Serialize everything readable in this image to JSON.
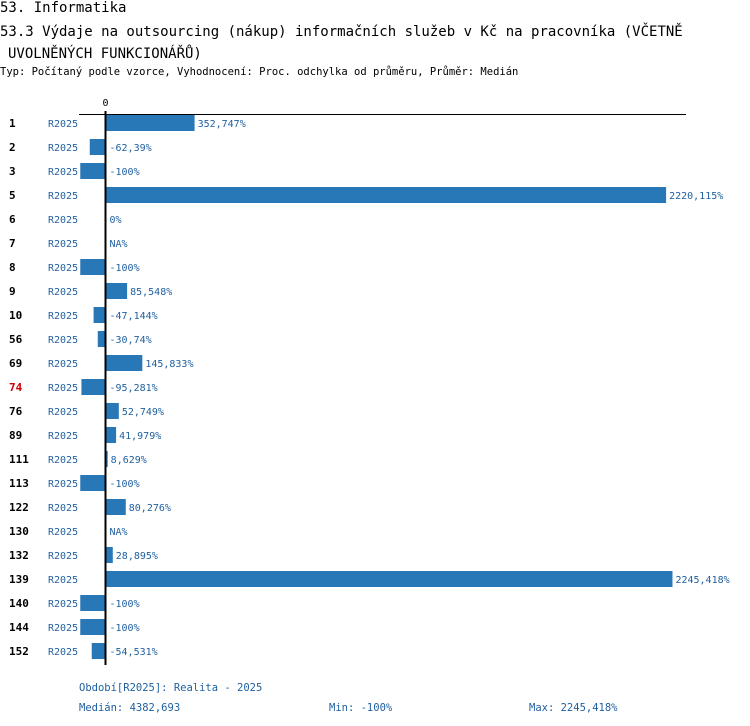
{
  "header": {
    "section_title": "53. Informatika",
    "chart_title_line1": "53.3 Výdaje na outsourcing (nákup) informačních služeb v Kč na pracovníka (VČETNĚ",
    "chart_title_line2": "UVOLNĚNÝCH FUNKCIONÁŘŮ)",
    "subtitle": "Typ: Počítaný podle vzorce, Vyhodnocení: Proc. odchylka od průměru, Průměr: Medián"
  },
  "colors": {
    "bar": "#2878b8",
    "label_blue": "#1f5f9e",
    "highlight": "#cc0000",
    "axis": "#000000"
  },
  "chart_data": {
    "type": "bar",
    "orientation": "horizontal",
    "title": "53.3 Výdaje na outsourcing (nákup) informačních služeb v Kč na pracovníka (VČETNĚ UVOLNĚNÝCH FUNKCIONÁŘŮ)",
    "xlabel": "",
    "ylabel": "",
    "zero_label": "0",
    "series_code": "R2025",
    "highlight_category": "74",
    "categories": [
      "1",
      "2",
      "3",
      "5",
      "6",
      "7",
      "8",
      "9",
      "10",
      "56",
      "69",
      "74",
      "76",
      "89",
      "111",
      "113",
      "122",
      "130",
      "132",
      "139",
      "140",
      "144",
      "152"
    ],
    "values": [
      352.747,
      -62.39,
      -100,
      2220.115,
      0,
      null,
      -100,
      85.548,
      -47.144,
      -30.74,
      145.833,
      -95.281,
      52.749,
      41.979,
      8.629,
      -100,
      80.276,
      null,
      28.895,
      2245.418,
      -100,
      -100,
      -54.531
    ],
    "value_labels": [
      "352,747%",
      "-62,39%",
      "-100%",
      "2220,115%",
      "0%",
      "NA%",
      "-100%",
      "85,548%",
      "-47,144%",
      "-30,74%",
      "145,833%",
      "-95,281%",
      "52,749%",
      "41,979%",
      "8,629%",
      "-100%",
      "80,276%",
      "NA%",
      "28,895%",
      "2245,418%",
      "-100%",
      "-100%",
      "-54,531%"
    ],
    "xlim": [
      -100,
      2245.418
    ]
  },
  "footer": {
    "period": "Období[R2025]: Realita - 2025",
    "median": "Medián: 4382,693",
    "min": "Min: -100%",
    "max": "Max: 2245,418%"
  }
}
